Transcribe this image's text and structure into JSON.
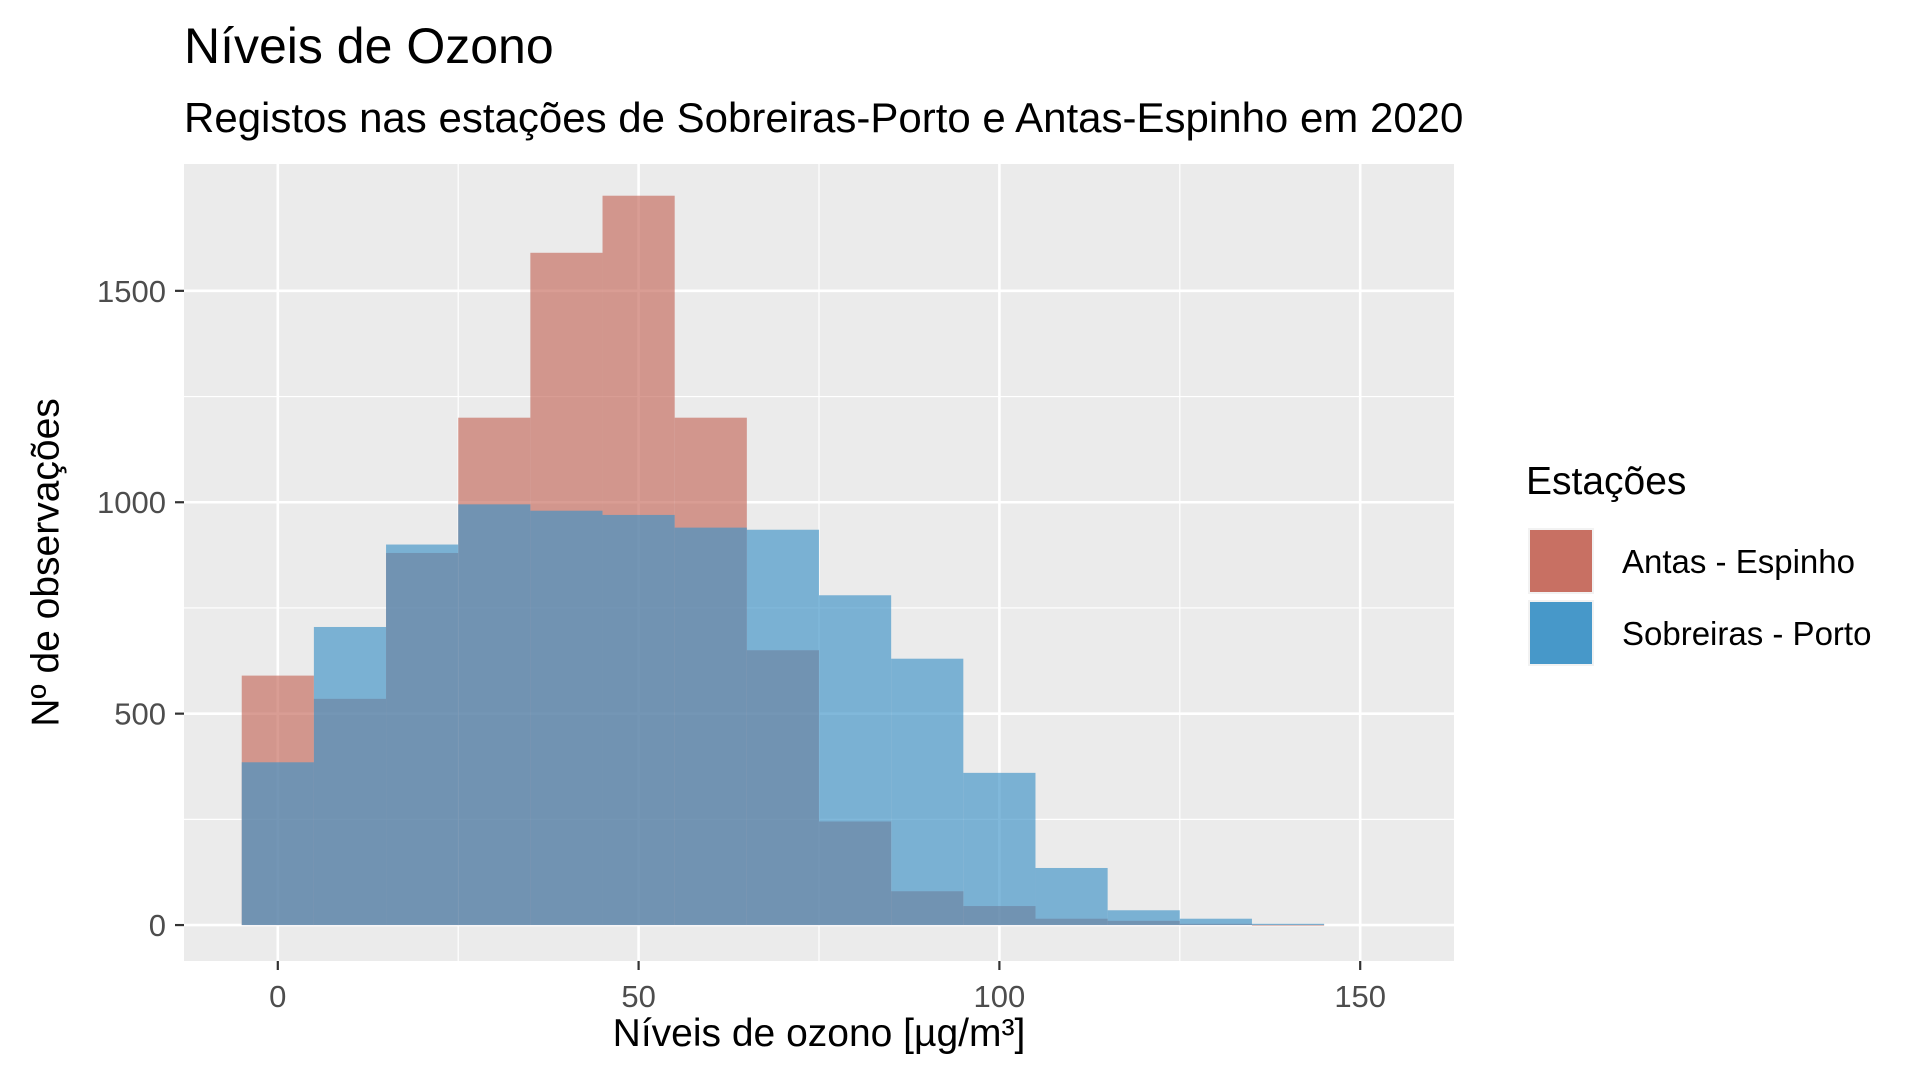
{
  "chart_data": {
    "type": "bar",
    "title": "Níveis de Ozono",
    "subtitle": "Registos nas estações de Sobreiras-Porto e Antas-Espinho em 2020",
    "xlabel": "Níveis de ozono [µg/m³]",
    "ylabel": "Nº de observações",
    "xlim": [
      -13,
      163
    ],
    "ylim": [
      -85,
      1800
    ],
    "x_ticks": [
      0,
      50,
      100,
      150
    ],
    "y_ticks": [
      0,
      500,
      1000,
      1500
    ],
    "bin_width": 10,
    "bins": [
      0,
      10,
      20,
      30,
      40,
      50,
      60,
      70,
      80,
      90,
      100,
      110,
      120,
      130,
      140
    ],
    "grid": true,
    "legend_position": "right",
    "legend_title": "Estações",
    "series": [
      {
        "name": "Antas - Espinho",
        "color": "#c5685b",
        "values": [
          590,
          535,
          880,
          1200,
          1590,
          1725,
          1200,
          650,
          245,
          80,
          45,
          15,
          10,
          3,
          1
        ]
      },
      {
        "name": "Sobreiras - Porto",
        "color": "#3d92c6",
        "values": [
          385,
          705,
          900,
          995,
          980,
          970,
          940,
          935,
          780,
          630,
          360,
          135,
          35,
          15,
          3
        ]
      }
    ],
    "overlap_color": "#6c84a2"
  }
}
